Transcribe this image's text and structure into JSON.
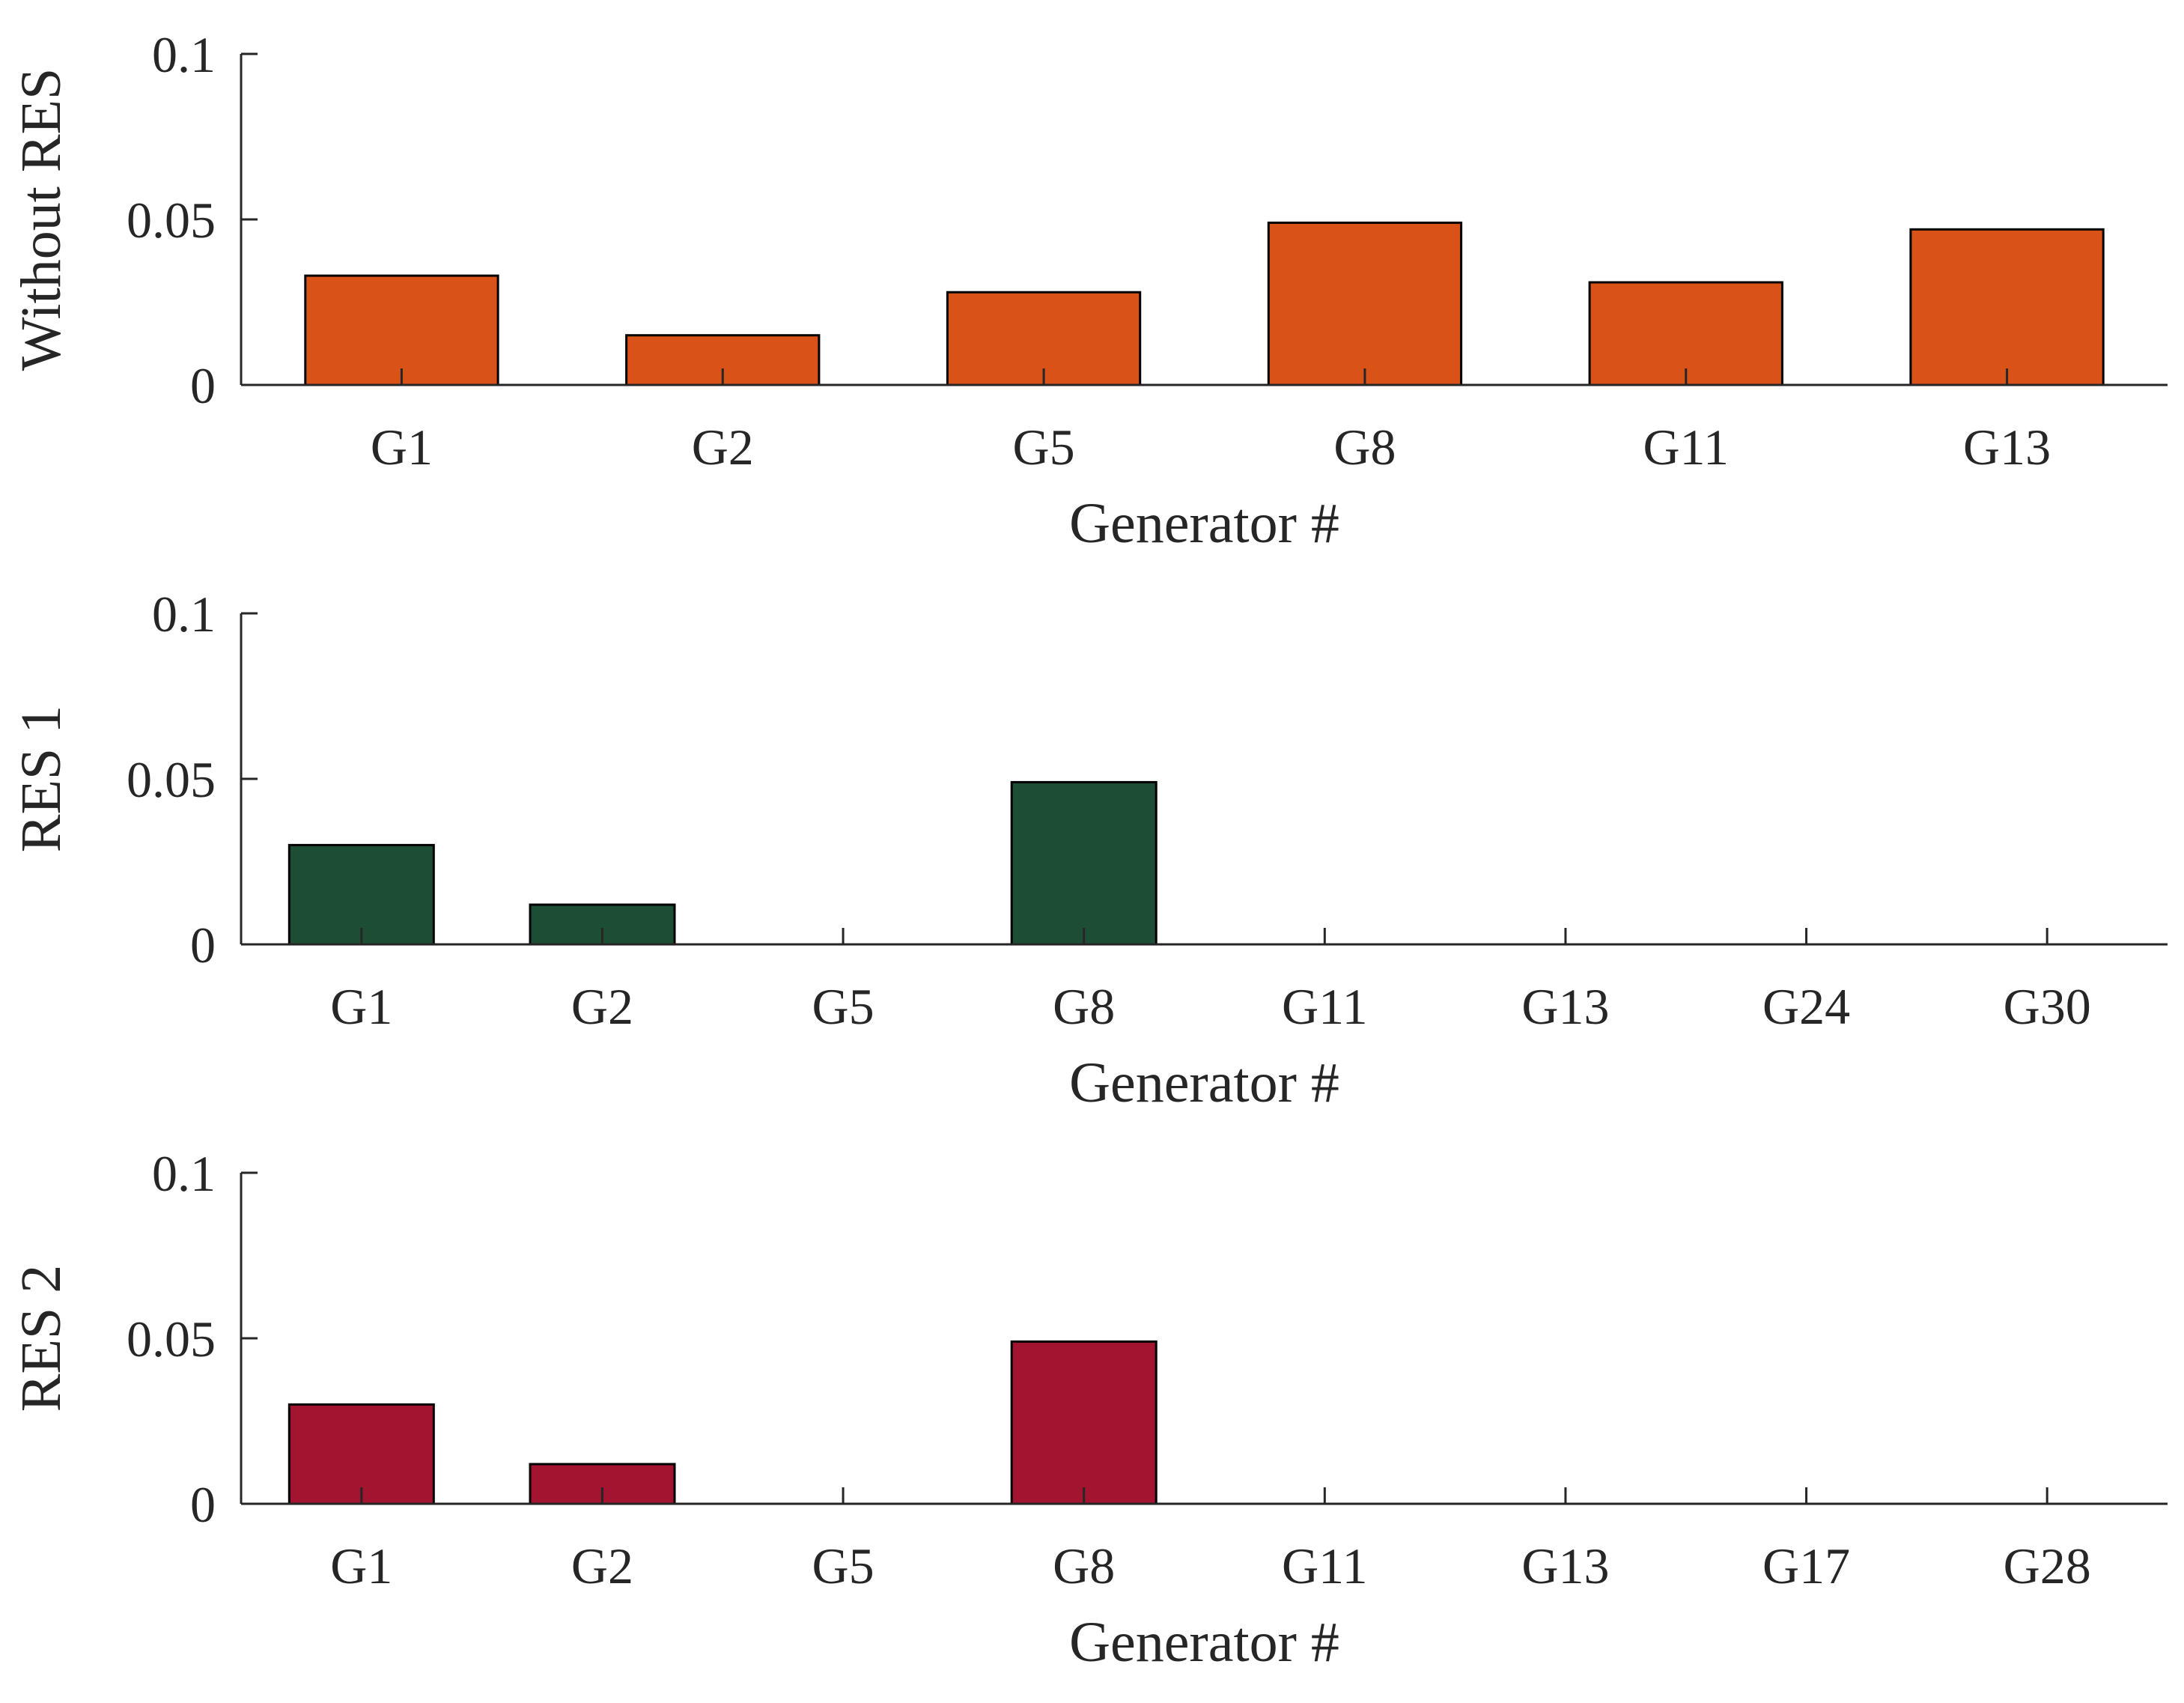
{
  "chart_data": [
    {
      "type": "bar",
      "title": "",
      "xlabel": "Generator #",
      "ylabel": "Without RES",
      "ylim": [
        0,
        0.1
      ],
      "yticks": [
        0,
        0.05,
        0.1
      ],
      "ytick_labels": [
        "0",
        "0.05",
        "0.1"
      ],
      "color": "#d95319",
      "categories": [
        "G1",
        "G2",
        "G5",
        "G8",
        "G11",
        "G13"
      ],
      "values": [
        0.033,
        0.015,
        0.028,
        0.049,
        0.031,
        0.047
      ]
    },
    {
      "type": "bar",
      "title": "",
      "xlabel": "Generator #",
      "ylabel": "RES 1",
      "ylim": [
        0,
        0.1
      ],
      "yticks": [
        0,
        0.05,
        0.1
      ],
      "ytick_labels": [
        "0",
        "0.05",
        "0.1"
      ],
      "color": "#1e4d35",
      "categories": [
        "G1",
        "G2",
        "G5",
        "G8",
        "G11",
        "G13",
        "G24",
        "G30"
      ],
      "values": [
        0.03,
        0.012,
        0,
        0.049,
        0,
        0,
        0,
        0
      ]
    },
    {
      "type": "bar",
      "title": "",
      "xlabel": "Generator #",
      "ylabel": "RES 2",
      "ylim": [
        0,
        0.1
      ],
      "yticks": [
        0,
        0.05,
        0.1
      ],
      "ytick_labels": [
        "0",
        "0.05",
        "0.1"
      ],
      "color": "#a2142f",
      "categories": [
        "G1",
        "G2",
        "G5",
        "G8",
        "G11",
        "G13",
        "G17",
        "G28"
      ],
      "values": [
        0.03,
        0.012,
        0,
        0.049,
        0,
        0,
        0,
        0
      ]
    }
  ]
}
